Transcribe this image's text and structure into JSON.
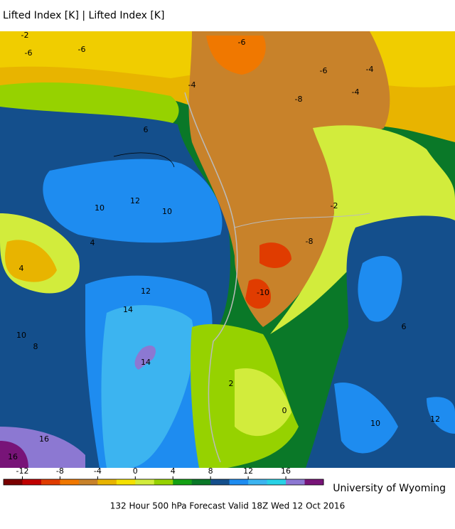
{
  "header": {
    "title": "Lifted Index [K] | Lifted Index [K]"
  },
  "map": {
    "contour_labels": [
      -2,
      -6,
      -6,
      -4,
      -6,
      -8,
      -6,
      -4,
      12,
      10,
      10,
      14,
      12,
      14,
      10,
      8,
      6,
      4,
      2,
      0,
      -10,
      -8,
      16,
      16,
      12,
      10,
      6,
      -2,
      4,
      -4
    ]
  },
  "colorbar": {
    "range": [
      -14,
      20
    ],
    "ticks": [
      -12,
      -8,
      -4,
      0,
      4,
      8,
      12,
      16
    ],
    "colors": [
      "#7a0000",
      "#c00000",
      "#e03c00",
      "#f07800",
      "#c8822a",
      "#e8b400",
      "#f5e100",
      "#d2ec3c",
      "#96d200",
      "#14a014",
      "#0a7828",
      "#144f8c",
      "#1e8cf0",
      "#3cb4f0",
      "#28d2e6",
      "#8c78d2",
      "#781478"
    ]
  },
  "footer": {
    "credit": "University of Wyoming",
    "caption": "132 Hour 500 hPa Forecast Valid 18Z Wed 12 Oct 2016"
  }
}
